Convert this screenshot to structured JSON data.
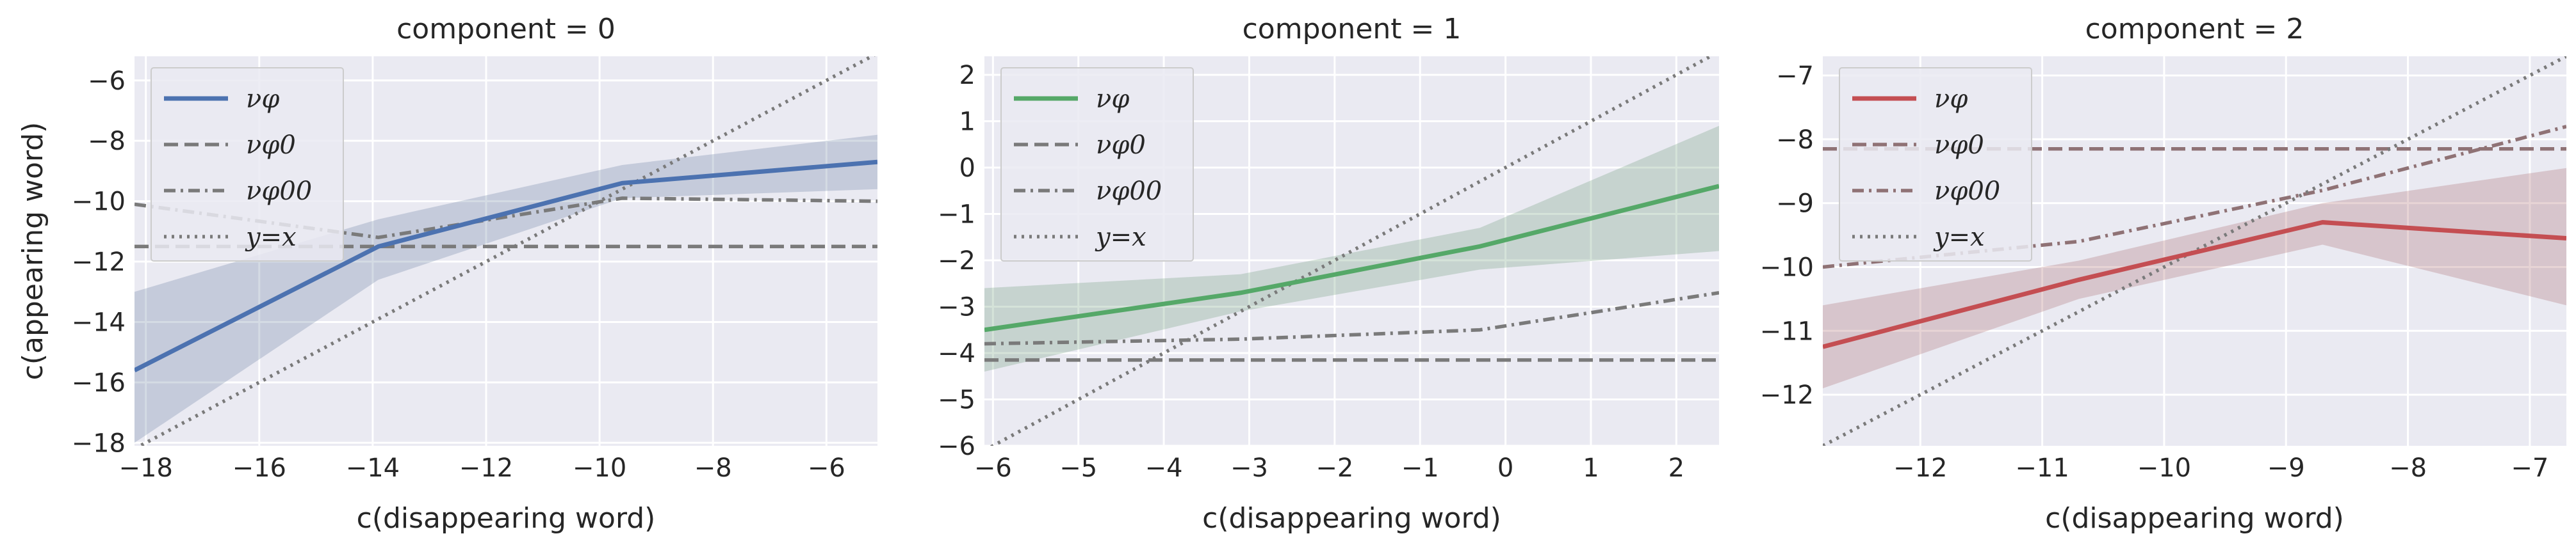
{
  "chart_data": [
    {
      "type": "line",
      "title": "component = 0",
      "xlabel": "c(disappearing word)",
      "ylabel": "c(appearing word)",
      "xlim": [
        -18.2,
        -5.1
      ],
      "ylim": [
        -18.1,
        -5.2
      ],
      "xticks": [
        -18,
        -16,
        -14,
        -12,
        -10,
        -8,
        -6
      ],
      "yticks": [
        -18,
        -16,
        -14,
        -12,
        -10,
        -8,
        -6
      ],
      "xtick_labels": [
        "−18",
        "−16",
        "−14",
        "−12",
        "−10",
        "−8",
        "−6"
      ],
      "ytick_labels": [
        "−18",
        "−16",
        "−14",
        "−12",
        "−10",
        "−8",
        "−6"
      ],
      "grid": true,
      "legend_position": "upper-left",
      "series": [
        {
          "name": "νφ",
          "style": "solid",
          "color": "#4c72b0",
          "x": [
            -18.2,
            -13.9,
            -9.6,
            -5.1
          ],
          "y": [
            -15.6,
            -11.5,
            -9.4,
            -8.7
          ],
          "ci_lower": [
            -18.0,
            -12.6,
            -9.9,
            -9.6
          ],
          "ci_upper": [
            -13.0,
            -10.6,
            -8.8,
            -7.8
          ]
        },
        {
          "name": "νφ0",
          "style": "dashed",
          "color": "#7a7a7a",
          "x": [
            -18.2,
            -5.1
          ],
          "y": [
            -11.5,
            -11.5
          ]
        },
        {
          "name": "νφ00",
          "style": "dashdot",
          "color": "#7a7a7a",
          "x": [
            -18.2,
            -13.9,
            -9.6,
            -5.1
          ],
          "y": [
            -10.1,
            -11.2,
            -9.9,
            -10.0
          ]
        },
        {
          "name": "y=x",
          "style": "dotted",
          "color": "#7a7a7a",
          "x": [
            -18.2,
            -5.1
          ],
          "y": [
            -18.2,
            -5.1
          ]
        }
      ]
    },
    {
      "type": "line",
      "title": "component = 1",
      "xlabel": "c(disappearing word)",
      "ylabel": "",
      "xlim": [
        -6.1,
        2.5
      ],
      "ylim": [
        -6.0,
        2.4
      ],
      "xticks": [
        -6,
        -5,
        -4,
        -3,
        -2,
        -1,
        0,
        1,
        2
      ],
      "yticks": [
        -6,
        -5,
        -4,
        -3,
        -2,
        -1,
        0,
        1,
        2
      ],
      "xtick_labels": [
        "−6",
        "−5",
        "−4",
        "−3",
        "−2",
        "−1",
        "0",
        "1",
        "2"
      ],
      "ytick_labels": [
        "−6",
        "−5",
        "−4",
        "−3",
        "−2",
        "−1",
        "0",
        "1",
        "2"
      ],
      "grid": true,
      "legend_position": "upper-left",
      "series": [
        {
          "name": "νφ",
          "style": "solid",
          "color": "#55a868",
          "x": [
            -6.1,
            -3.1,
            -0.3,
            2.5
          ],
          "y": [
            -3.5,
            -2.7,
            -1.7,
            -0.4
          ],
          "ci_lower": [
            -4.4,
            -3.1,
            -2.2,
            -1.8
          ],
          "ci_upper": [
            -2.6,
            -2.3,
            -1.3,
            0.9
          ]
        },
        {
          "name": "νφ0",
          "style": "dashed",
          "color": "#7a7a7a",
          "x": [
            -6.1,
            2.5
          ],
          "y": [
            -4.15,
            -4.15
          ]
        },
        {
          "name": "νφ00",
          "style": "dashdot",
          "color": "#7a7a7a",
          "x": [
            -6.1,
            -3.1,
            -0.3,
            2.5
          ],
          "y": [
            -3.8,
            -3.7,
            -3.5,
            -2.7
          ]
        },
        {
          "name": "y=x",
          "style": "dotted",
          "color": "#7a7a7a",
          "x": [
            -6.1,
            2.5
          ],
          "y": [
            -6.1,
            2.5
          ]
        }
      ]
    },
    {
      "type": "line",
      "title": "component = 2",
      "xlabel": "c(disappearing word)",
      "ylabel": "",
      "xlim": [
        -12.8,
        -6.7
      ],
      "ylim": [
        -12.8,
        -6.7
      ],
      "xticks": [
        -12,
        -11,
        -10,
        -9,
        -8,
        -7
      ],
      "yticks": [
        -12,
        -11,
        -10,
        -9,
        -8,
        -7
      ],
      "xtick_labels": [
        "−12",
        "−11",
        "−10",
        "−9",
        "−8",
        "−7"
      ],
      "ytick_labels": [
        "−12",
        "−11",
        "−10",
        "−9",
        "−8",
        "−7"
      ],
      "grid": true,
      "legend_position": "upper-left",
      "series": [
        {
          "name": "νφ",
          "style": "solid",
          "color": "#c44e52",
          "x": [
            -12.8,
            -10.7,
            -8.7,
            -6.7
          ],
          "y": [
            -11.25,
            -10.2,
            -9.3,
            -9.55
          ],
          "ci_lower": [
            -11.9,
            -10.5,
            -9.65,
            -10.6
          ],
          "ci_upper": [
            -10.6,
            -9.9,
            -9.0,
            -8.45
          ]
        },
        {
          "name": "νφ0",
          "style": "dashed",
          "color": "#8f7275",
          "x": [
            -12.8,
            -6.7
          ],
          "y": [
            -8.15,
            -8.15
          ]
        },
        {
          "name": "νφ00",
          "style": "dashdot",
          "color": "#8f7275",
          "x": [
            -12.8,
            -10.7,
            -8.7,
            -6.7
          ],
          "y": [
            -10.0,
            -9.6,
            -8.8,
            -7.8
          ]
        },
        {
          "name": "y=x",
          "style": "dotted",
          "color": "#7a7a7a",
          "x": [
            -12.8,
            -6.7
          ],
          "y": [
            -12.8,
            -6.7
          ]
        }
      ]
    }
  ]
}
